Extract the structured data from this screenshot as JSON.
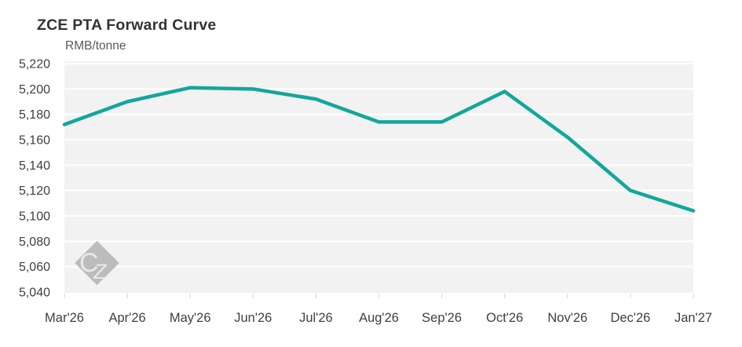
{
  "header": {
    "title": "ZCE PTA Forward Curve",
    "unit_label": "RMB/tonne"
  },
  "watermark": {
    "text": "CZ"
  },
  "colors": {
    "accent_line": "#12A79A",
    "plot_background": "#F2F2F2",
    "gridline": "#FFFFFF",
    "title_text": "#333333",
    "unit_text": "#595959",
    "axis_text": "#404040",
    "tick_mark": "#D9D9D9",
    "watermark_fill": "#BCBCBC",
    "watermark_text": "#EDEDED"
  },
  "chart_data": {
    "type": "line",
    "title": "ZCE PTA Forward Curve",
    "ylabel": "RMB/tonne",
    "categories": [
      "Mar'26",
      "Apr'26",
      "May'26",
      "Jun'26",
      "Jul'26",
      "Aug'26",
      "Sep'26",
      "Oct'26",
      "Nov'26",
      "Dec'26",
      "Jan'27"
    ],
    "series": [
      {
        "name": "ZCE PTA Forward Curve",
        "values": [
          5172,
          5190,
          5201,
          5200,
          5192,
          5174,
          5174,
          5198,
          5162,
          5120,
          5104
        ]
      }
    ],
    "ylim": [
      5040,
      5220
    ],
    "ytick_step": 20,
    "grid": true,
    "legend": false
  }
}
